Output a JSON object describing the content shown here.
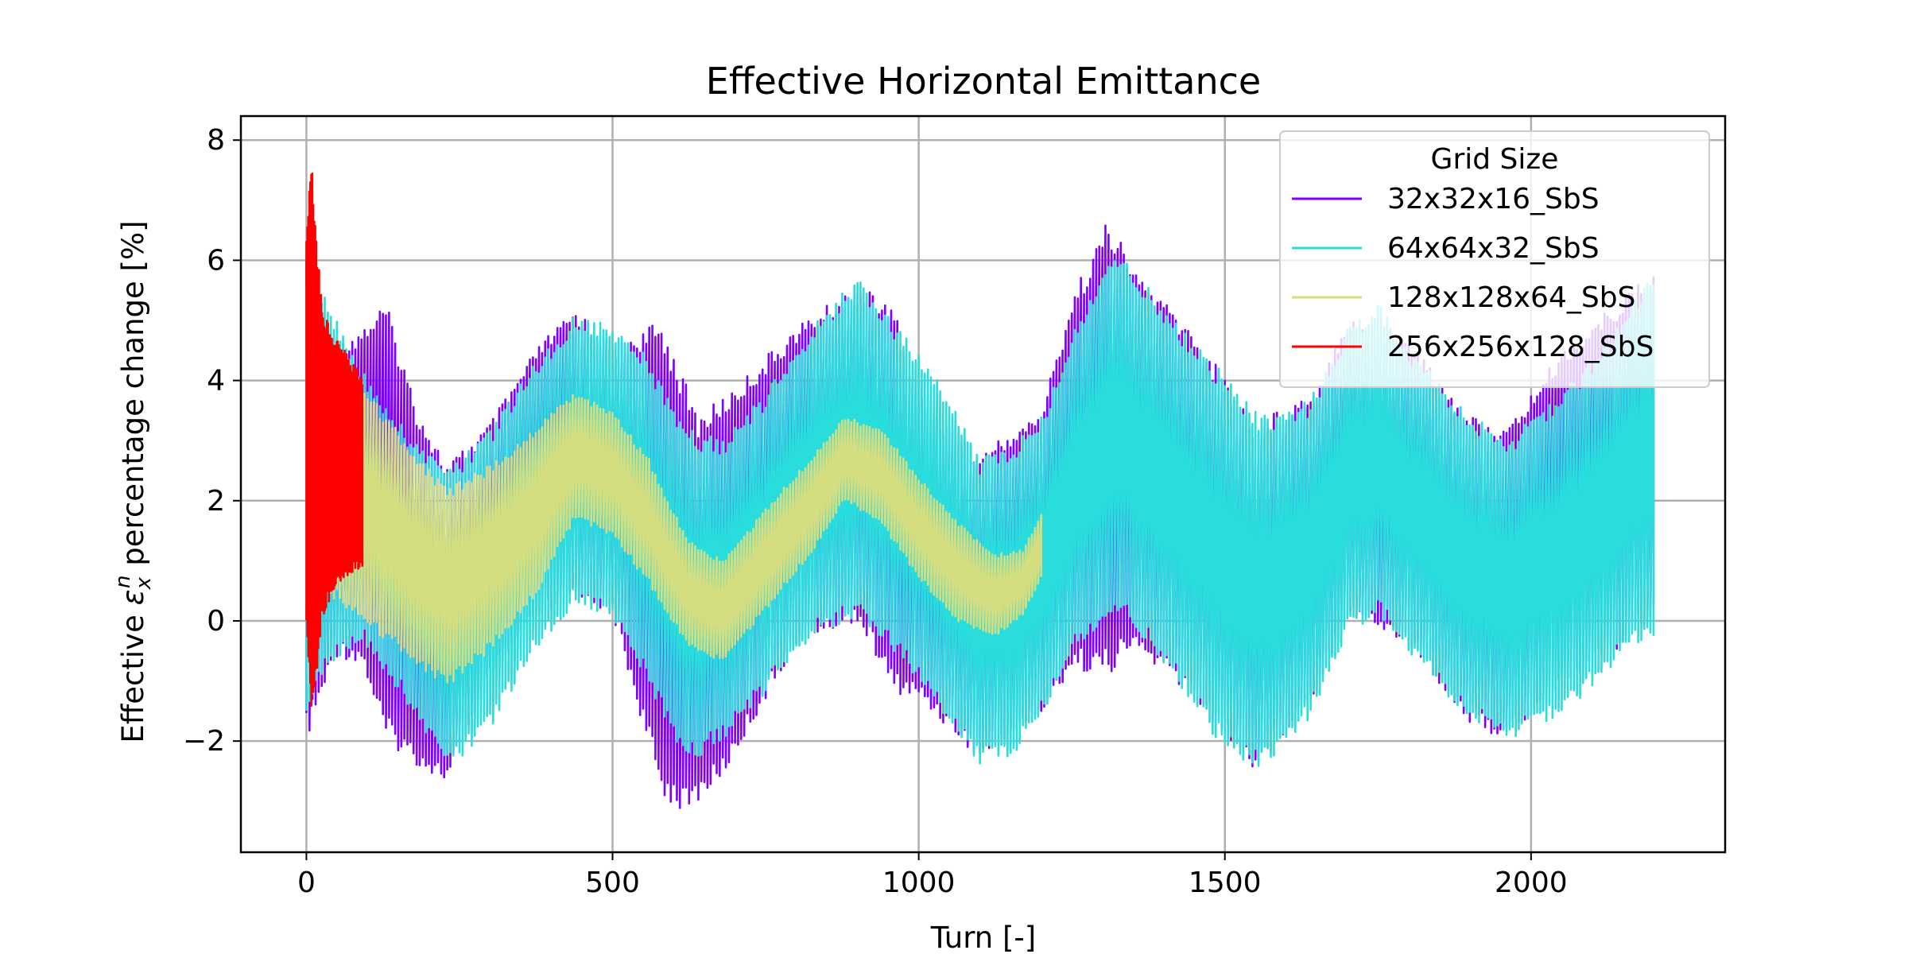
{
  "chart_data": {
    "type": "line",
    "title": "Effective Horizontal Emittance",
    "xlabel": "Turn [-]",
    "ylabel": "Effective εₓⁿ percentage change [%]",
    "ylabel_parts": {
      "before": "Effective ",
      "symbol": "ε",
      "subscript": "x",
      "superscript": "n",
      "after": " percentage change [%]"
    },
    "xlim": [
      -107,
      2317
    ],
    "ylim": [
      -3.85,
      8.4
    ],
    "xticks": [
      0,
      500,
      1000,
      1500,
      2000
    ],
    "yticks": [
      -2,
      0,
      2,
      4,
      6,
      8
    ],
    "xtick_labels": [
      "0",
      "500",
      "1000",
      "1500",
      "2000"
    ],
    "ytick_labels": [
      "−2",
      "0",
      "2",
      "4",
      "6",
      "8"
    ],
    "grid": true,
    "legend": {
      "title": "Grid Size",
      "position": "top-right",
      "entries": [
        "32x32x16_SbS",
        "64x64x32_SbS",
        "128x128x64_SbS",
        "256x256x128_SbS"
      ]
    },
    "series": [
      {
        "name": "32x32x16_SbS",
        "color": "#8000ff",
        "x_range": [
          0,
          2200
        ],
        "upper_envelope": [
          [
            0,
            6.0
          ],
          [
            50,
            4.6
          ],
          [
            90,
            4.9
          ],
          [
            130,
            5.3
          ],
          [
            180,
            3.6
          ],
          [
            230,
            2.6
          ],
          [
            300,
            3.3
          ],
          [
            380,
            4.6
          ],
          [
            440,
            5.2
          ],
          [
            500,
            4.6
          ],
          [
            580,
            5.0
          ],
          [
            640,
            3.4
          ],
          [
            700,
            3.9
          ],
          [
            800,
            4.9
          ],
          [
            900,
            5.6
          ],
          [
            960,
            5.2
          ],
          [
            1000,
            3.8
          ],
          [
            1100,
            2.8
          ],
          [
            1200,
            3.5
          ],
          [
            1250,
            5.4
          ],
          [
            1310,
            6.7
          ],
          [
            1350,
            5.9
          ],
          [
            1450,
            4.8
          ],
          [
            1550,
            3.3
          ],
          [
            1650,
            3.9
          ],
          [
            1700,
            5.1
          ],
          [
            1800,
            4.7
          ],
          [
            1900,
            3.4
          ],
          [
            1960,
            3.2
          ],
          [
            2050,
            4.5
          ],
          [
            2150,
            5.4
          ],
          [
            2200,
            5.8
          ]
        ],
        "lower_envelope": [
          [
            0,
            -2.0
          ],
          [
            50,
            -0.6
          ],
          [
            90,
            -0.7
          ],
          [
            130,
            -2.0
          ],
          [
            180,
            -2.4
          ],
          [
            230,
            -2.7
          ],
          [
            300,
            -1.0
          ],
          [
            380,
            0.0
          ],
          [
            440,
            0.4
          ],
          [
            500,
            0.1
          ],
          [
            580,
            -2.9
          ],
          [
            620,
            -3.2
          ],
          [
            680,
            -2.6
          ],
          [
            800,
            -0.4
          ],
          [
            900,
            0.0
          ],
          [
            960,
            -1.2
          ],
          [
            1000,
            -1.3
          ],
          [
            1100,
            -2.3
          ],
          [
            1200,
            -1.6
          ],
          [
            1250,
            -0.8
          ],
          [
            1310,
            -0.9
          ],
          [
            1350,
            -0.5
          ],
          [
            1450,
            -1.3
          ],
          [
            1550,
            -2.5
          ],
          [
            1650,
            -1.2
          ],
          [
            1700,
            0.1
          ],
          [
            1800,
            -0.4
          ],
          [
            1900,
            -1.7
          ],
          [
            1960,
            -2.0
          ],
          [
            2050,
            -1.1
          ],
          [
            2150,
            -0.4
          ],
          [
            2200,
            0.0
          ]
        ]
      },
      {
        "name": "64x64x32_SbS",
        "color": "#2adddd",
        "x_range": [
          0,
          2200
        ],
        "upper_envelope": [
          [
            0,
            5.8
          ],
          [
            40,
            5.3
          ],
          [
            90,
            4.2
          ],
          [
            160,
            3.2
          ],
          [
            230,
            2.5
          ],
          [
            300,
            3.2
          ],
          [
            380,
            4.4
          ],
          [
            440,
            5.1
          ],
          [
            500,
            4.9
          ],
          [
            550,
            4.5
          ],
          [
            620,
            3.2
          ],
          [
            680,
            3.0
          ],
          [
            750,
            3.8
          ],
          [
            830,
            5.0
          ],
          [
            900,
            5.7
          ],
          [
            960,
            5.0
          ],
          [
            1050,
            3.8
          ],
          [
            1100,
            2.7
          ],
          [
            1150,
            2.9
          ],
          [
            1200,
            3.4
          ],
          [
            1250,
            4.8
          ],
          [
            1310,
            6.1
          ],
          [
            1350,
            5.9
          ],
          [
            1420,
            5.0
          ],
          [
            1500,
            4.1
          ],
          [
            1560,
            3.4
          ],
          [
            1640,
            3.7
          ],
          [
            1700,
            4.9
          ],
          [
            1750,
            5.3
          ],
          [
            1800,
            4.6
          ],
          [
            1880,
            3.6
          ],
          [
            1960,
            3.0
          ],
          [
            2050,
            3.8
          ],
          [
            2150,
            5.0
          ],
          [
            2200,
            5.9
          ]
        ],
        "lower_envelope": [
          [
            0,
            -1.7
          ],
          [
            40,
            -0.7
          ],
          [
            90,
            -0.3
          ],
          [
            160,
            -1.3
          ],
          [
            230,
            -2.5
          ],
          [
            300,
            -1.8
          ],
          [
            380,
            -0.4
          ],
          [
            440,
            0.3
          ],
          [
            500,
            0.0
          ],
          [
            550,
            -0.9
          ],
          [
            620,
            -2.4
          ],
          [
            680,
            -2.0
          ],
          [
            750,
            -1.2
          ],
          [
            830,
            -0.2
          ],
          [
            900,
            0.0
          ],
          [
            960,
            -0.5
          ],
          [
            1050,
            -1.7
          ],
          [
            1100,
            -2.4
          ],
          [
            1150,
            -2.3
          ],
          [
            1200,
            -1.6
          ],
          [
            1250,
            -0.5
          ],
          [
            1310,
            0.0
          ],
          [
            1350,
            -0.1
          ],
          [
            1420,
            -1.0
          ],
          [
            1500,
            -2.2
          ],
          [
            1560,
            -2.5
          ],
          [
            1640,
            -1.6
          ],
          [
            1700,
            -0.2
          ],
          [
            1750,
            0.1
          ],
          [
            1800,
            -0.5
          ],
          [
            1880,
            -1.5
          ],
          [
            1960,
            -2.0
          ],
          [
            2050,
            -1.6
          ],
          [
            2150,
            -0.6
          ],
          [
            2200,
            -0.3
          ]
        ]
      },
      {
        "name": "128x128x64_SbS",
        "color": "#d4dd80",
        "x_range": [
          0,
          1200
        ],
        "upper_envelope": [
          [
            0,
            4.6
          ],
          [
            40,
            4.4
          ],
          [
            90,
            4.0
          ],
          [
            160,
            3.0
          ],
          [
            230,
            2.2
          ],
          [
            300,
            2.6
          ],
          [
            380,
            3.3
          ],
          [
            440,
            3.8
          ],
          [
            500,
            3.5
          ],
          [
            560,
            2.7
          ],
          [
            620,
            1.4
          ],
          [
            680,
            1.0
          ],
          [
            760,
            2.0
          ],
          [
            830,
            2.8
          ],
          [
            880,
            3.4
          ],
          [
            940,
            3.2
          ],
          [
            1000,
            2.4
          ],
          [
            1060,
            1.7
          ],
          [
            1120,
            1.1
          ],
          [
            1170,
            1.2
          ],
          [
            1200,
            1.8
          ]
        ],
        "lower_envelope": [
          [
            0,
            0.0
          ],
          [
            40,
            0.4
          ],
          [
            90,
            0.0
          ],
          [
            160,
            -0.6
          ],
          [
            230,
            -1.1
          ],
          [
            300,
            -0.5
          ],
          [
            380,
            0.5
          ],
          [
            440,
            1.7
          ],
          [
            500,
            1.4
          ],
          [
            560,
            0.6
          ],
          [
            620,
            -0.4
          ],
          [
            680,
            -0.7
          ],
          [
            760,
            0.3
          ],
          [
            830,
            1.2
          ],
          [
            880,
            2.0
          ],
          [
            940,
            1.6
          ],
          [
            1000,
            0.7
          ],
          [
            1060,
            0.0
          ],
          [
            1120,
            -0.3
          ],
          [
            1170,
            0.1
          ],
          [
            1200,
            0.7
          ]
        ]
      },
      {
        "name": "256x256x128_SbS",
        "color": "#ff0000",
        "x_range": [
          0,
          92
        ],
        "upper_envelope": [
          [
            0,
            6.7
          ],
          [
            8,
            7.8
          ],
          [
            15,
            6.6
          ],
          [
            25,
            5.3
          ],
          [
            40,
            4.8
          ],
          [
            60,
            4.6
          ],
          [
            75,
            4.3
          ],
          [
            92,
            4.1
          ]
        ],
        "lower_envelope": [
          [
            0,
            0.0
          ],
          [
            8,
            -1.6
          ],
          [
            15,
            -1.1
          ],
          [
            25,
            0.0
          ],
          [
            40,
            0.4
          ],
          [
            60,
            0.7
          ],
          [
            75,
            0.8
          ],
          [
            92,
            0.9
          ]
        ]
      }
    ]
  }
}
